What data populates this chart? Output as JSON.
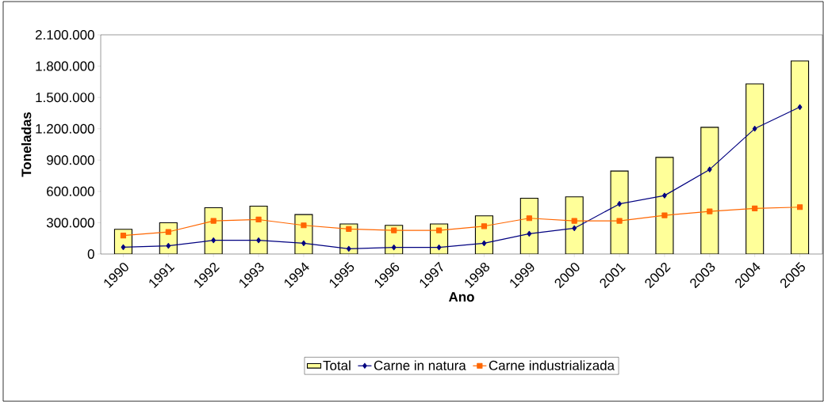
{
  "chart_data": {
    "type": "bar",
    "xlabel": "Ano",
    "ylabel": "Toneladas",
    "categories": [
      "1990",
      "1991",
      "1992",
      "1993",
      "1994",
      "1995",
      "1996",
      "1997",
      "1998",
      "1999",
      "2000",
      "2001",
      "2002",
      "2003",
      "2004",
      "2005"
    ],
    "series": [
      {
        "name": "Total",
        "color": "#ffff99",
        "values": [
          237000,
          300000,
          444000,
          459000,
          378000,
          288000,
          275000,
          288000,
          366000,
          535000,
          548000,
          795000,
          926000,
          1214000,
          1630000,
          1850000
        ]
      },
      {
        "name": "Carne in natura",
        "type": "line",
        "color": "#000080",
        "marker": "diamond",
        "values": [
          66000,
          78000,
          131000,
          131000,
          103000,
          50000,
          63000,
          63000,
          103000,
          194000,
          247000,
          480000,
          560000,
          810000,
          1201000,
          1408000
        ]
      },
      {
        "name": "Carne industrializada",
        "type": "line",
        "color": "#ff6600",
        "marker": "square",
        "values": [
          177000,
          212000,
          318000,
          330000,
          275000,
          240000,
          227000,
          227000,
          267000,
          343000,
          318000,
          318000,
          371000,
          409000,
          437000,
          449000
        ]
      }
    ],
    "ylim": [
      0,
      2100000
    ],
    "yticks": [
      0,
      {
        "value": 300000,
        "label": "300.000"
      },
      {
        "value": 600000,
        "label": "600.000"
      },
      {
        "value": 900000,
        "label": "900.000"
      },
      {
        "value": 1200000,
        "label": "1.200.000"
      },
      {
        "value": 1500000,
        "label": "1.500.000"
      },
      {
        "value": 1800000,
        "label": "1.800.000"
      },
      {
        "value": 2100000,
        "label": "2.100.000"
      }
    ],
    "grid": false,
    "legend": "bottom"
  }
}
